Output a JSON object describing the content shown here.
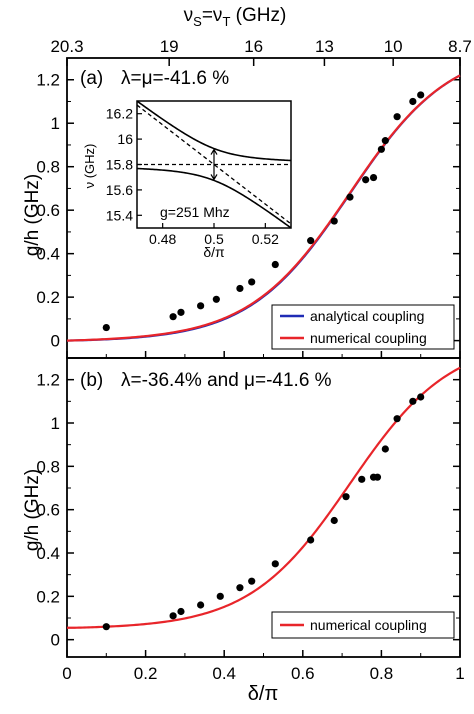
{
  "top_axis": {
    "label": "ν_S=ν_T (GHz)",
    "ticks": [
      {
        "x": 0.0,
        "label": "20.3"
      },
      {
        "x": 0.26,
        "label": "19"
      },
      {
        "x": 0.475,
        "label": "16"
      },
      {
        "x": 0.655,
        "label": "13"
      },
      {
        "x": 0.83,
        "label": "10"
      },
      {
        "x": 1.0,
        "label": "8.7"
      }
    ]
  },
  "chart_data": [
    {
      "type": "line",
      "panel_label": "(a)",
      "annotation": "λ=μ=-41.6 %",
      "xlabel": "δ/π",
      "ylabel": "g/h (GHz)",
      "xlim": [
        0,
        1
      ],
      "ylim": [
        -0.08,
        1.3
      ],
      "yticks": [
        0,
        0.2,
        0.4,
        0.6,
        0.8,
        1,
        1.2
      ],
      "xticks": [
        0,
        0.2,
        0.4,
        0.6,
        0.8,
        1
      ],
      "legend_position": "bottom-right",
      "series": [
        {
          "name": "analytical coupling",
          "color": "#1f2bb5",
          "kind": "analytical"
        },
        {
          "name": "numerical coupling",
          "color": "#e8252a",
          "kind": "numerical_a"
        }
      ],
      "scatter": {
        "x": [
          0.1,
          0.27,
          0.29,
          0.34,
          0.38,
          0.44,
          0.47,
          0.53,
          0.62,
          0.68,
          0.72,
          0.76,
          0.78,
          0.8,
          0.81,
          0.84,
          0.88,
          0.9
        ],
        "y": [
          0.06,
          0.11,
          0.13,
          0.16,
          0.19,
          0.24,
          0.27,
          0.35,
          0.46,
          0.55,
          0.66,
          0.74,
          0.75,
          0.88,
          0.92,
          1.03,
          1.1,
          1.13
        ]
      },
      "inset": {
        "xlabel": "δ/π",
        "ylabel": "ν (GHz)",
        "xlim": [
          0.47,
          0.53
        ],
        "ylim": [
          15.3,
          16.3
        ],
        "xticks": [
          {
            "v": 0.48,
            "label": "0.48"
          },
          {
            "v": 0.5,
            "label": "0.5"
          },
          {
            "v": 0.52,
            "label": "0.52"
          }
        ],
        "yticks": [
          {
            "v": 15.4,
            "label": "15.4"
          },
          {
            "v": 15.6,
            "label": "15.6"
          },
          {
            "v": 15.8,
            "label": "15.8"
          },
          {
            "v": 16.0,
            "label": "16"
          },
          {
            "v": 16.2,
            "label": "16.2"
          }
        ],
        "annotation": "g=251 Mhz",
        "center_frequency": 15.8,
        "slope": -15.6,
        "half_gap": 0.1255
      }
    },
    {
      "type": "line",
      "panel_label": "(b)",
      "annotation": "λ=-36.4% and μ=-41.6 %",
      "xlabel": "δ/π",
      "ylabel": "g/h (GHz)",
      "xlim": [
        0,
        1
      ],
      "ylim": [
        -0.08,
        1.3
      ],
      "yticks": [
        0,
        0.2,
        0.4,
        0.6,
        0.8,
        1,
        1.2
      ],
      "xticks": [
        0,
        0.2,
        0.4,
        0.6,
        0.8,
        1
      ],
      "legend_position": "bottom-right",
      "series": [
        {
          "name": "numerical coupling",
          "color": "#e8252a",
          "kind": "numerical_b"
        }
      ],
      "scatter": {
        "x": [
          0.1,
          0.27,
          0.29,
          0.34,
          0.39,
          0.44,
          0.47,
          0.53,
          0.62,
          0.68,
          0.71,
          0.75,
          0.78,
          0.79,
          0.81,
          0.84,
          0.88,
          0.9
        ],
        "y": [
          0.06,
          0.11,
          0.13,
          0.16,
          0.2,
          0.24,
          0.27,
          0.35,
          0.46,
          0.55,
          0.66,
          0.74,
          0.75,
          0.75,
          0.88,
          1.02,
          1.1,
          1.12
        ]
      }
    }
  ]
}
